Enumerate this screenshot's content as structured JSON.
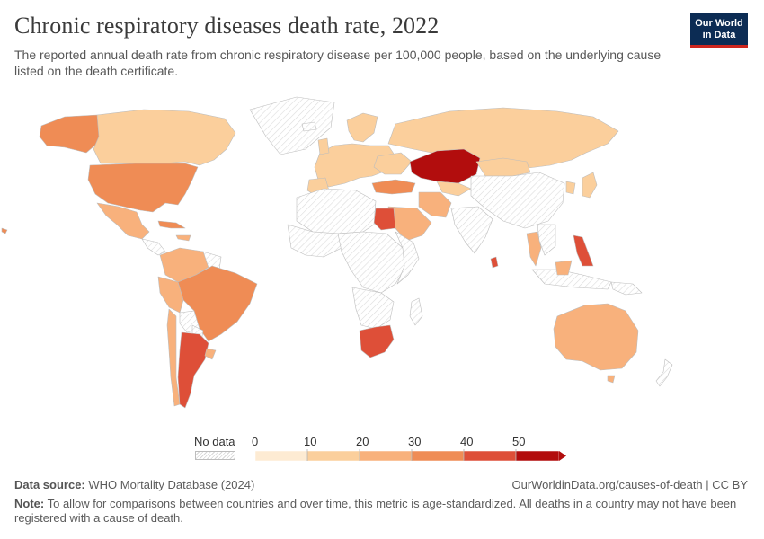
{
  "header": {
    "title": "Chronic respiratory diseases death rate, 2022",
    "subtitle": "The reported annual death rate from chronic respiratory disease per 100,000 people, based on the underlying cause listed on the death certificate."
  },
  "logo": {
    "line1": "Our World",
    "line2": "in Data"
  },
  "legend": {
    "no_data_label": "No data",
    "ticks": [
      "0",
      "10",
      "20",
      "30",
      "40",
      "50"
    ],
    "colors": [
      "#fdebd3",
      "#fbcf9c",
      "#f8b17c",
      "#ef8c55",
      "#de4f38",
      "#b20d0d"
    ]
  },
  "map_data": {
    "no_data_color": "#ffffff",
    "border_color": "#c8c8c8",
    "countries": [
      {
        "name": "Canada",
        "bin": 1
      },
      {
        "name": "United States",
        "bin": 3
      },
      {
        "name": "Alaska (United States)",
        "bin": 3
      },
      {
        "name": "Mexico",
        "bin": 2
      },
      {
        "name": "Cuba",
        "bin": 3
      },
      {
        "name": "Brazil",
        "bin": 3
      },
      {
        "name": "Argentina",
        "bin": 4
      },
      {
        "name": "Colombia",
        "bin": 2
      },
      {
        "name": "Peru",
        "bin": 2
      },
      {
        "name": "Chile",
        "bin": 2
      },
      {
        "name": "Russia",
        "bin": 1
      },
      {
        "name": "Kazakhstan",
        "bin": 5
      },
      {
        "name": "Egypt",
        "bin": 4
      },
      {
        "name": "Turkey",
        "bin": 3
      },
      {
        "name": "Iran",
        "bin": 2
      },
      {
        "name": "Saudi Arabia",
        "bin": 2
      },
      {
        "name": "South Africa",
        "bin": 4
      },
      {
        "name": "Philippines",
        "bin": 4
      },
      {
        "name": "Sri Lanka",
        "bin": 4
      },
      {
        "name": "Australia",
        "bin": 2
      },
      {
        "name": "Japan",
        "bin": 1
      },
      {
        "name": "Thailand",
        "bin": 2
      },
      {
        "name": "Mongolia",
        "bin": 1
      },
      {
        "name": "Europe",
        "bin": 1
      }
    ]
  },
  "footer": {
    "source_label": "Data source:",
    "source_text": "WHO Mortality Database (2024)",
    "url": "OurWorldinData.org/causes-of-death | CC BY",
    "note_label": "Note:",
    "note_text": "To allow for comparisons between countries and over time, this metric is age-standardized. All deaths in a country may not have been registered with a cause of death."
  }
}
